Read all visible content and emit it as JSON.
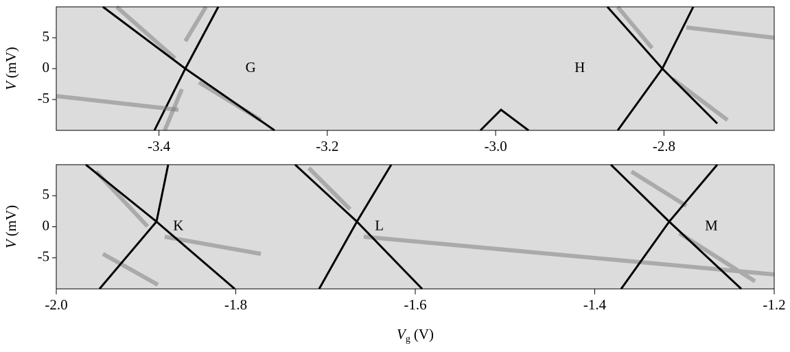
{
  "chart_data": [
    {
      "type": "heatmap",
      "ylabel": {
        "symbol": "V",
        "unit": "(mV)"
      },
      "xlim": [
        -3.522,
        -2.669
      ],
      "xticks": [
        -3.4,
        -3.2,
        {
          "value": -3.0,
          "label": "-3.0"
        },
        -2.8
      ],
      "ylim": [
        -10,
        10
      ],
      "yticks": [
        5,
        0,
        -5
      ],
      "annotations": [
        {
          "text": "G",
          "x": -3.291,
          "y": 0
        },
        {
          "text": "H",
          "x": -2.9,
          "y": 0
        }
      ]
    },
    {
      "type": "heatmap",
      "ylabel": {
        "symbol": "V",
        "unit": "(mV)"
      },
      "xlabel": {
        "symbol": "V",
        "subscript": "g",
        "unit": "(V)"
      },
      "xlim": [
        -2.0,
        -1.2
      ],
      "xticks": [
        {
          "value": -2.0,
          "label": "-2.0"
        },
        -1.8,
        -1.6,
        -1.4,
        -1.2
      ],
      "ylim": [
        -10,
        10
      ],
      "yticks": [
        5,
        0,
        -5
      ],
      "annotations": [
        {
          "text": "K",
          "x": -1.864,
          "y": 0
        },
        {
          "text": "L",
          "x": -1.64,
          "y": 0
        },
        {
          "text": "M",
          "x": -1.27,
          "y": 0
        }
      ]
    }
  ]
}
